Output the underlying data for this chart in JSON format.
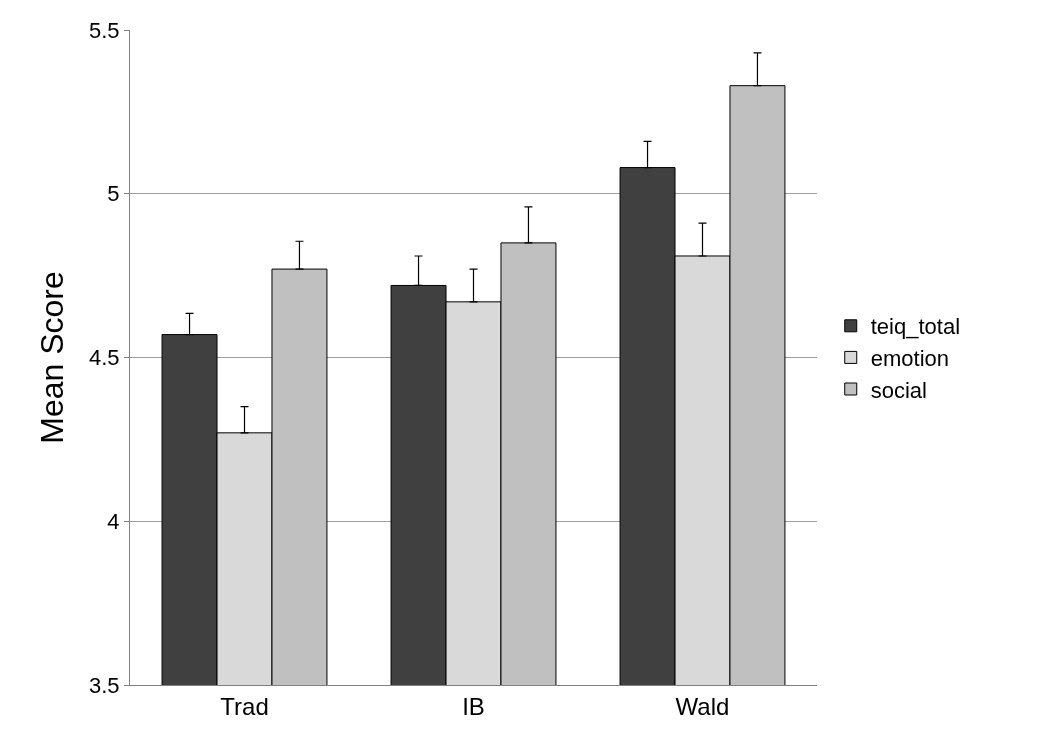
{
  "chart_data": {
    "type": "bar",
    "ylabel": "Mean Score",
    "categories": [
      "Trad",
      "IB",
      "Wald"
    ],
    "series": [
      {
        "name": "teiq_total",
        "color": "#404040",
        "values": [
          4.57,
          4.72,
          5.08
        ],
        "errors": [
          [
            4.57,
            4.635
          ],
          [
            4.72,
            4.81
          ],
          [
            5.08,
            5.16
          ]
        ]
      },
      {
        "name": "emotion",
        "color": "#d9d9d9",
        "values": [
          4.27,
          4.67,
          4.81
        ],
        "errors": [
          [
            4.27,
            4.35
          ],
          [
            4.67,
            4.77
          ],
          [
            4.81,
            4.91
          ]
        ]
      },
      {
        "name": "social",
        "color": "#c0c0c0",
        "values": [
          4.77,
          4.85,
          5.33
        ],
        "errors": [
          [
            4.77,
            4.855
          ],
          [
            4.85,
            4.96
          ],
          [
            5.33,
            5.43
          ]
        ]
      }
    ],
    "ylim": [
      3.5,
      5.5
    ],
    "yticks": [
      3.5,
      4,
      4.5,
      5,
      5.5
    ],
    "grid": "y",
    "legend": "right"
  }
}
